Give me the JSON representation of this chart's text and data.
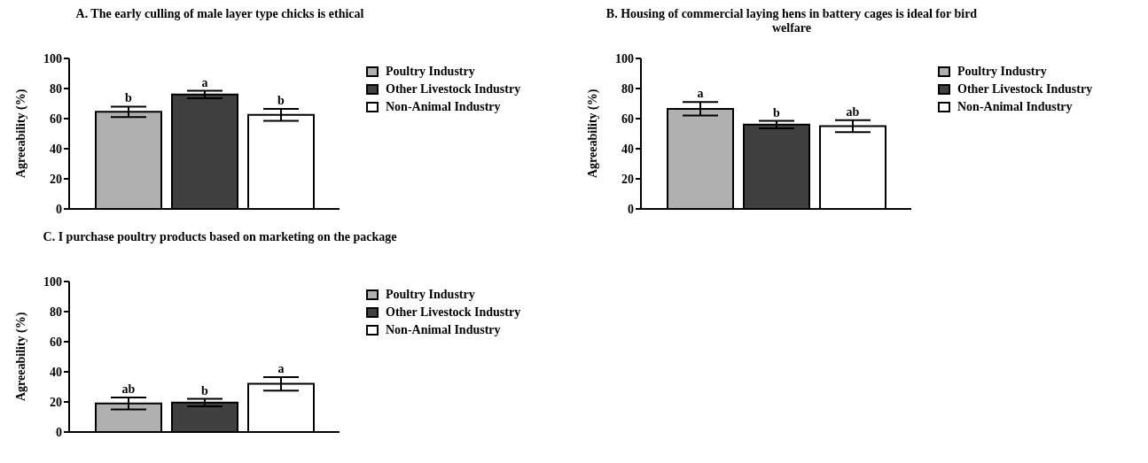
{
  "chart_data": [
    {
      "type": "bar",
      "title": "A.   The early culling of male layer type chicks is ethical",
      "ylabel": "Agreeability (%)",
      "categories": [
        null
      ],
      "ylim": [
        0,
        100
      ],
      "yticks": [
        0,
        20,
        40,
        60,
        80,
        100
      ],
      "grid": false,
      "legend": "right",
      "series": [
        {
          "name": "Poultry Industry",
          "color": "#b0b0b0",
          "values": [
            64.5
          ],
          "errors": [
            3.5
          ],
          "value_labels": [
            "b"
          ]
        },
        {
          "name": "Other Livestock Industry",
          "color": "#404040",
          "values": [
            76
          ],
          "errors": [
            2.5
          ],
          "value_labels": [
            "a"
          ]
        },
        {
          "name": "Non-Animal Industry",
          "color": "#ffffff",
          "values": [
            62.5
          ],
          "errors": [
            4
          ],
          "value_labels": [
            "b"
          ]
        }
      ]
    },
    {
      "type": "bar",
      "title": "B.   Housing of commercial laying hens in battery cages is ideal for bird welfare",
      "ylabel": "Agreeability (%)",
      "categories": [
        null
      ],
      "ylim": [
        0,
        100
      ],
      "yticks": [
        0,
        20,
        40,
        60,
        80,
        100
      ],
      "grid": false,
      "legend": "right",
      "series": [
        {
          "name": "Poultry Industry",
          "color": "#b0b0b0",
          "values": [
            66.5
          ],
          "errors": [
            4.5
          ],
          "value_labels": [
            "a"
          ]
        },
        {
          "name": "Other Livestock Industry",
          "color": "#404040",
          "values": [
            56
          ],
          "errors": [
            2.5
          ],
          "value_labels": [
            "b"
          ]
        },
        {
          "name": "Non-Animal Industry",
          "color": "#ffffff",
          "values": [
            55
          ],
          "errors": [
            4
          ],
          "value_labels": [
            "ab"
          ]
        }
      ]
    },
    {
      "type": "bar",
      "title": "C.   I purchase poultry products based on marketing on the package",
      "ylabel": "Agreeability (%)",
      "categories": [
        null
      ],
      "ylim": [
        0,
        100
      ],
      "yticks": [
        0,
        20,
        40,
        60,
        80,
        100
      ],
      "grid": false,
      "legend": "right",
      "series": [
        {
          "name": "Poultry Industry",
          "color": "#b0b0b0",
          "values": [
            19
          ],
          "errors": [
            4
          ],
          "value_labels": [
            "ab"
          ]
        },
        {
          "name": "Other Livestock Industry",
          "color": "#404040",
          "values": [
            19.5
          ],
          "errors": [
            2.5
          ],
          "value_labels": [
            "b"
          ]
        },
        {
          "name": "Non-Animal Industry",
          "color": "#ffffff",
          "values": [
            32
          ],
          "errors": [
            4.5
          ],
          "value_labels": [
            "a"
          ]
        }
      ]
    }
  ]
}
